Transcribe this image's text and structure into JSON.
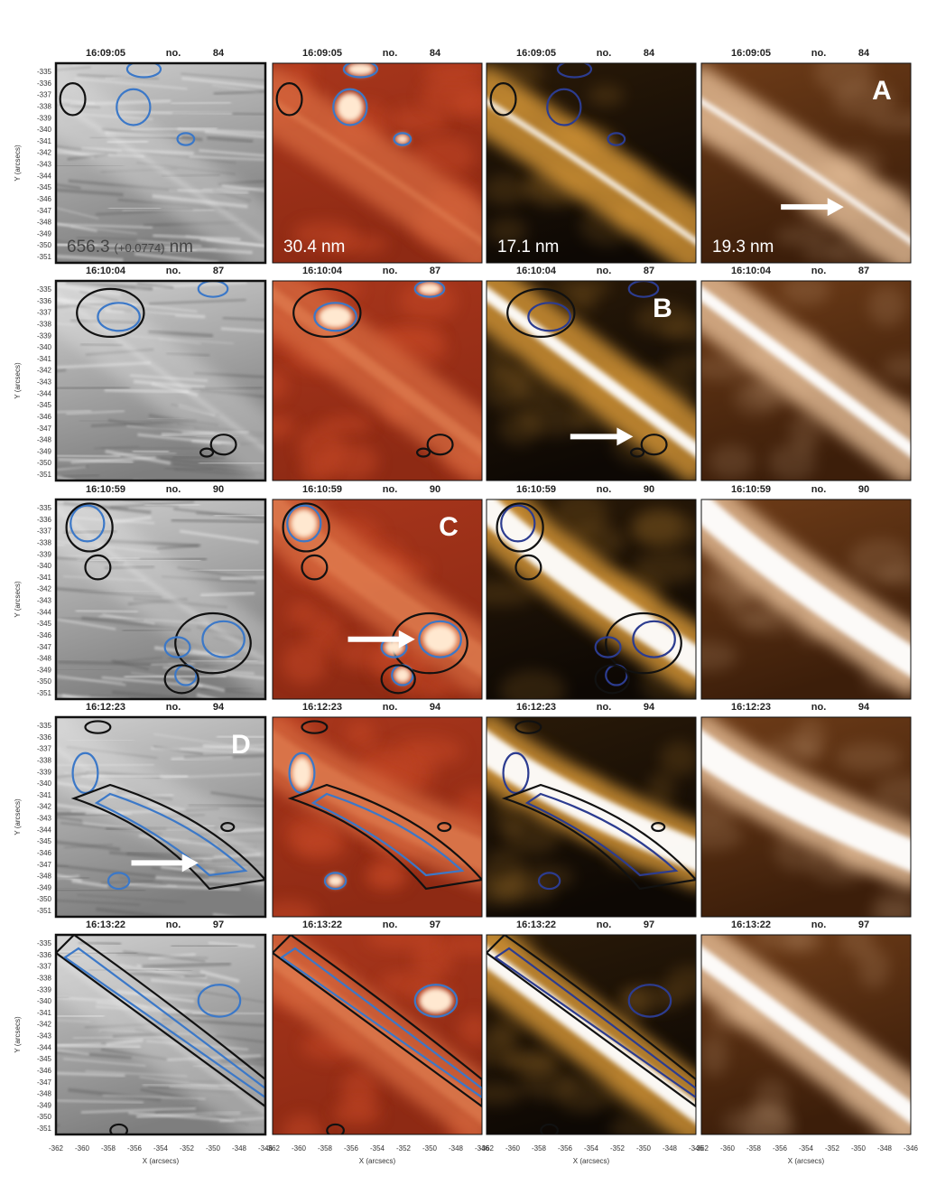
{
  "rows": [
    {
      "time": "16:09:05",
      "no": "no.",
      "frame": 84,
      "letter": "A"
    },
    {
      "time": "16:10:04",
      "no": "no.",
      "frame": 87,
      "letter": "B"
    },
    {
      "time": "16:10:59",
      "no": "no.",
      "frame": 90,
      "letter": "C"
    },
    {
      "time": "16:12:23",
      "no": "no.",
      "frame": 94,
      "letter": "D"
    },
    {
      "time": "16:13:22",
      "no": "no.",
      "frame": 97
    }
  ],
  "channels": [
    {
      "value": "656.3",
      "offset": "(+0.0774)",
      "unit": "nm"
    },
    {
      "value": "30.4",
      "unit": "nm"
    },
    {
      "value": "17.1",
      "unit": "nm"
    },
    {
      "value": "19.3",
      "unit": "nm"
    }
  ],
  "y_axis": {
    "label": "Y (arcsecs)",
    "ticks": [
      -335,
      -336,
      -337,
      -338,
      -339,
      -340,
      -341,
      -342,
      -343,
      -344,
      -345,
      -346,
      -347,
      -348,
      -349,
      -350,
      -351
    ]
  },
  "x_axis": {
    "label": "X (arcsecs)",
    "ticks": [
      -362,
      -360,
      -358,
      -356,
      -354,
      -352,
      -350,
      -348,
      -346
    ]
  }
}
